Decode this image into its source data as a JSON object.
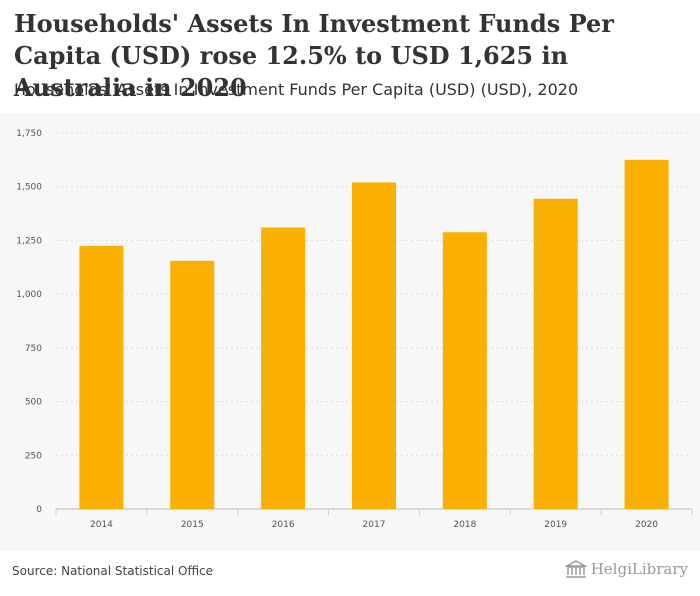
{
  "header": {
    "title": "Households' Assets In Investment Funds Per Capita (USD) rose 12.5% to USD 1,625 in Australia in 2020",
    "subtitle": "Households' Assets In Investment Funds Per Capita (USD) (USD), 2020"
  },
  "footer": {
    "source": "Source: National Statistical Office",
    "brand": "HelgiLibrary"
  },
  "colors": {
    "bar": "#f9b000",
    "grid": "#dddddd",
    "panel": "#f7f7f7"
  },
  "chart_data": {
    "type": "bar",
    "title": "Households' Assets In Investment Funds Per Capita (USD) (USD), 2020",
    "xlabel": "",
    "ylabel": "",
    "categories": [
      "2014",
      "2015",
      "2016",
      "2017",
      "2018",
      "2019",
      "2020"
    ],
    "values": [
      1225,
      1155,
      1310,
      1520,
      1288,
      1444,
      1625
    ],
    "ylim": [
      0,
      1750
    ],
    "yticks": [
      0,
      250,
      500,
      750,
      1000,
      1250,
      1500,
      1750
    ],
    "ytick_labels": [
      "0",
      "250",
      "500",
      "750",
      "1,000",
      "1,250",
      "1,500",
      "1,750"
    ],
    "grid": true,
    "legend": "none"
  }
}
